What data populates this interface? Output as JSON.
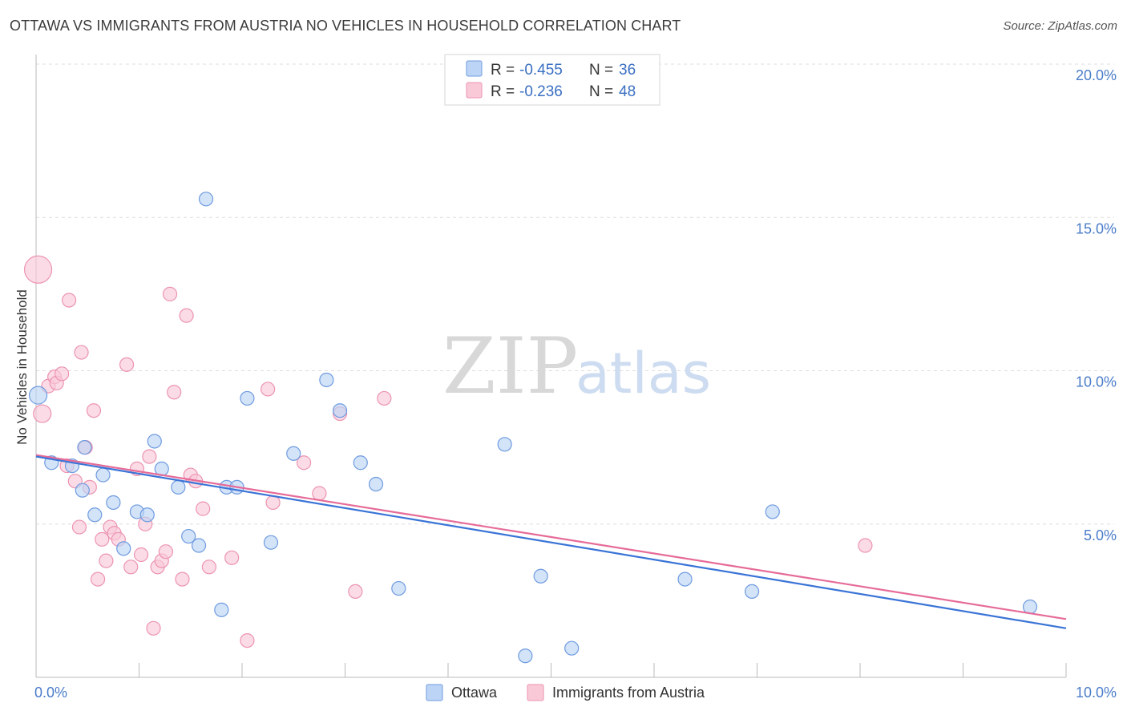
{
  "header": {
    "title": "OTTAWA VS IMMIGRANTS FROM AUSTRIA NO VEHICLES IN HOUSEHOLD CORRELATION CHART",
    "source": "Source: ZipAtlas.com"
  },
  "watermark": {
    "zip": "ZIP",
    "atlas": "atlas"
  },
  "colors": {
    "ottawa_fill": "#bcd4f5",
    "ottawa_stroke": "#6f9be0",
    "ottawa_line": "#3a74d6",
    "austria_fill": "#f9c9d8",
    "austria_stroke": "#ec93b1",
    "austria_line": "#e66b98",
    "grid": "#dddddd",
    "tick_label": "#4a7cc9"
  },
  "legend": {
    "rows": [
      {
        "r_label": "R = ",
        "r_value": "-0.455",
        "n_label": "N = ",
        "n_value": "36"
      },
      {
        "r_label": "R = ",
        "r_value": "-0.236",
        "n_label": "N = ",
        "n_value": "48"
      }
    ]
  },
  "chart_data": {
    "type": "scatter",
    "title": "OTTAWA VS IMMIGRANTS FROM AUSTRIA NO VEHICLES IN HOUSEHOLD CORRELATION CHART",
    "xlabel": "",
    "ylabel": "No Vehicles in Household",
    "xlim": [
      0,
      10
    ],
    "ylim": [
      0,
      20
    ],
    "x_tick_labels": [
      "0.0%",
      "10.0%"
    ],
    "y_ticks": [
      5,
      10,
      15,
      20
    ],
    "y_tick_labels": [
      "5.0%",
      "10.0%",
      "15.0%",
      "20.0%"
    ],
    "grid": "horizontal-dashed",
    "legend_placement": "top-center",
    "series": [
      {
        "name": "Ottawa",
        "trend": [
          [
            0,
            7.2
          ],
          [
            10,
            1.6
          ]
        ],
        "points": [
          [
            0.02,
            9.2
          ],
          [
            0.15,
            7.0
          ],
          [
            0.35,
            6.9
          ],
          [
            0.47,
            7.5
          ],
          [
            0.45,
            6.1
          ],
          [
            0.57,
            5.3
          ],
          [
            0.65,
            6.6
          ],
          [
            0.75,
            5.7
          ],
          [
            0.85,
            4.2
          ],
          [
            0.98,
            5.4
          ],
          [
            1.08,
            5.3
          ],
          [
            1.15,
            7.7
          ],
          [
            1.22,
            6.8
          ],
          [
            1.38,
            6.2
          ],
          [
            1.48,
            4.6
          ],
          [
            1.58,
            4.3
          ],
          [
            1.65,
            15.6
          ],
          [
            1.8,
            2.2
          ],
          [
            1.85,
            6.2
          ],
          [
            1.95,
            6.2
          ],
          [
            2.05,
            9.1
          ],
          [
            2.28,
            4.4
          ],
          [
            2.5,
            7.3
          ],
          [
            2.82,
            9.7
          ],
          [
            2.95,
            8.7
          ],
          [
            3.15,
            7.0
          ],
          [
            3.3,
            6.3
          ],
          [
            3.52,
            2.9
          ],
          [
            4.55,
            7.6
          ],
          [
            4.75,
            0.7
          ],
          [
            4.9,
            3.3
          ],
          [
            5.2,
            0.95
          ],
          [
            6.3,
            3.2
          ],
          [
            6.95,
            2.8
          ],
          [
            7.15,
            5.4
          ],
          [
            9.65,
            2.3
          ]
        ]
      },
      {
        "name": "Immigrants from Austria",
        "trend": [
          [
            0,
            7.25
          ],
          [
            10,
            1.9
          ]
        ],
        "points": [
          [
            0.02,
            13.3
          ],
          [
            0.06,
            8.6
          ],
          [
            0.12,
            9.5
          ],
          [
            0.18,
            9.8
          ],
          [
            0.2,
            9.6
          ],
          [
            0.25,
            9.9
          ],
          [
            0.3,
            6.9
          ],
          [
            0.32,
            12.3
          ],
          [
            0.38,
            6.4
          ],
          [
            0.42,
            4.9
          ],
          [
            0.44,
            10.6
          ],
          [
            0.48,
            7.5
          ],
          [
            0.52,
            6.2
          ],
          [
            0.56,
            8.7
          ],
          [
            0.6,
            3.2
          ],
          [
            0.64,
            4.5
          ],
          [
            0.68,
            3.8
          ],
          [
            0.72,
            4.9
          ],
          [
            0.76,
            4.7
          ],
          [
            0.8,
            4.5
          ],
          [
            0.88,
            10.2
          ],
          [
            0.92,
            3.6
          ],
          [
            0.98,
            6.8
          ],
          [
            1.02,
            4.0
          ],
          [
            1.06,
            5.0
          ],
          [
            1.1,
            7.2
          ],
          [
            1.14,
            1.6
          ],
          [
            1.18,
            3.6
          ],
          [
            1.22,
            3.8
          ],
          [
            1.26,
            4.1
          ],
          [
            1.3,
            12.5
          ],
          [
            1.34,
            9.3
          ],
          [
            1.42,
            3.2
          ],
          [
            1.46,
            11.8
          ],
          [
            1.5,
            6.6
          ],
          [
            1.55,
            6.4
          ],
          [
            1.62,
            5.5
          ],
          [
            1.68,
            3.6
          ],
          [
            1.9,
            3.9
          ],
          [
            2.05,
            1.2
          ],
          [
            2.25,
            9.4
          ],
          [
            2.3,
            5.7
          ],
          [
            2.6,
            7.0
          ],
          [
            2.75,
            6.0
          ],
          [
            2.95,
            8.6
          ],
          [
            3.1,
            2.8
          ],
          [
            3.38,
            9.1
          ],
          [
            8.05,
            4.3
          ]
        ]
      }
    ]
  }
}
